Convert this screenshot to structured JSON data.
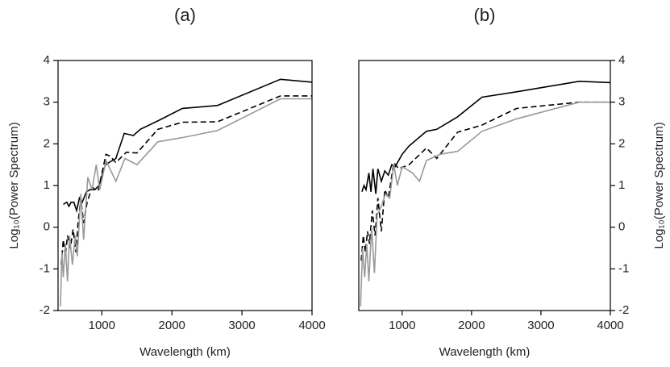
{
  "chart_data": [
    {
      "type": "line",
      "title": "(a)",
      "x_label": "Wavelength (km)",
      "y_label": "Log₁₀(Power Spectrum)",
      "y_axis_side": "left",
      "xlim": [
        375,
        4000
      ],
      "ylim": [
        -2,
        4
      ],
      "xticks": [
        1000,
        2000,
        3000,
        4000
      ],
      "yticks": [
        -2,
        -1,
        0,
        1,
        2,
        3,
        4
      ],
      "series": [
        {
          "color": "#000000",
          "dashed": false,
          "x": [
            450,
            500,
            530,
            560,
            600,
            640,
            680,
            720,
            780,
            830,
            900,
            960,
            1050,
            1150,
            1200,
            1320,
            1450,
            1550,
            1800,
            2150,
            2650,
            3550,
            4000
          ],
          "values": [
            0.55,
            0.6,
            0.5,
            0.6,
            0.6,
            0.4,
            0.7,
            0.6,
            0.85,
            0.9,
            0.9,
            1.0,
            1.5,
            1.6,
            1.65,
            2.25,
            2.2,
            2.35,
            2.55,
            2.85,
            2.92,
            3.55,
            3.48
          ]
        },
        {
          "color": "#000000",
          "dashed": true,
          "x": [
            420,
            450,
            480,
            510,
            550,
            590,
            630,
            660,
            700,
            740,
            790,
            860,
            950,
            1060,
            1120,
            1200,
            1350,
            1500,
            1800,
            2150,
            2650,
            3550,
            4000
          ],
          "values": [
            -0.9,
            -0.3,
            -0.7,
            -0.2,
            -0.5,
            -0.05,
            -0.6,
            0.1,
            0.7,
            0.1,
            0.6,
            0.95,
            0.9,
            1.75,
            1.7,
            1.55,
            1.8,
            1.78,
            2.35,
            2.52,
            2.53,
            3.15,
            3.15
          ]
        },
        {
          "color": "#999999",
          "dashed": false,
          "x": [
            410,
            430,
            450,
            480,
            510,
            540,
            580,
            620,
            650,
            700,
            740,
            800,
            860,
            920,
            970,
            1060,
            1200,
            1330,
            1500,
            1800,
            2150,
            2650,
            3550,
            4000
          ],
          "values": [
            -1.9,
            -0.6,
            -1.2,
            -0.4,
            -1.3,
            -0.2,
            -0.9,
            -0.2,
            -0.7,
            0.8,
            -0.3,
            1.2,
            0.9,
            1.5,
            0.9,
            1.6,
            1.1,
            1.65,
            1.5,
            2.05,
            2.15,
            2.32,
            3.08,
            3.08
          ]
        }
      ]
    },
    {
      "type": "line",
      "title": "(b)",
      "x_label": "Wavelength (km)",
      "y_label": "Log₁₀(Power Spectrum)",
      "y_axis_side": "right",
      "xlim": [
        375,
        4000
      ],
      "ylim": [
        -2,
        4
      ],
      "xticks": [
        1000,
        2000,
        3000,
        4000
      ],
      "yticks": [
        -2,
        -1,
        0,
        1,
        2,
        3,
        4
      ],
      "series": [
        {
          "color": "#000000",
          "dashed": false,
          "x": [
            420,
            450,
            480,
            520,
            550,
            580,
            620,
            650,
            700,
            750,
            800,
            850,
            900,
            1000,
            1100,
            1350,
            1500,
            1800,
            2150,
            2650,
            3550,
            4000
          ],
          "values": [
            0.85,
            1.0,
            0.9,
            1.3,
            0.85,
            1.4,
            0.8,
            1.4,
            1.1,
            1.35,
            1.25,
            1.5,
            1.45,
            1.75,
            1.95,
            2.3,
            2.35,
            2.65,
            3.12,
            3.25,
            3.5,
            3.47
          ]
        },
        {
          "color": "#000000",
          "dashed": true,
          "x": [
            410,
            440,
            470,
            500,
            530,
            570,
            610,
            650,
            700,
            750,
            800,
            880,
            950,
            1100,
            1350,
            1500,
            1800,
            2150,
            2650,
            3550,
            4000
          ],
          "values": [
            -0.8,
            -0.2,
            -0.6,
            -0.1,
            -0.4,
            0.4,
            -0.2,
            0.7,
            -0.1,
            0.9,
            0.7,
            1.55,
            1.4,
            1.5,
            1.9,
            1.65,
            2.28,
            2.45,
            2.85,
            3.0,
            3.0
          ]
        },
        {
          "color": "#999999",
          "dashed": false,
          "x": [
            400,
            430,
            460,
            490,
            520,
            560,
            600,
            640,
            700,
            760,
            820,
            880,
            930,
            1000,
            1150,
            1250,
            1350,
            1550,
            1800,
            2150,
            2650,
            3550,
            4000
          ],
          "values": [
            -1.9,
            -0.5,
            -1.2,
            -0.4,
            -1.3,
            0.0,
            -1.1,
            0.3,
            0.5,
            0.8,
            0.7,
            1.5,
            1.0,
            1.45,
            1.3,
            1.1,
            1.6,
            1.75,
            1.82,
            2.3,
            2.6,
            3.0,
            3.0
          ]
        }
      ]
    }
  ]
}
